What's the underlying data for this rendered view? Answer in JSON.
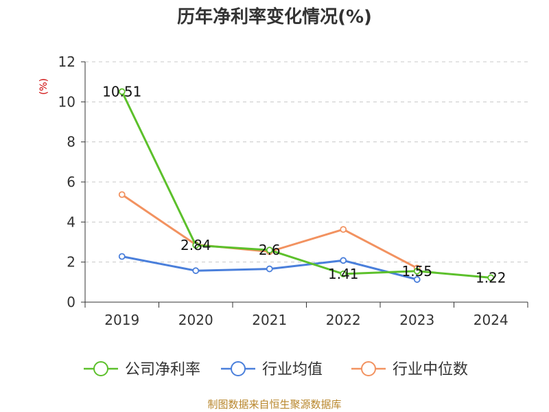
{
  "chart_data": {
    "type": "line",
    "title": "历年净利率变化情况(%)",
    "ylabel": "(%)",
    "xlabel": "",
    "categories": [
      "2019",
      "2020",
      "2021",
      "2022",
      "2023",
      "2024"
    ],
    "ylim": [
      0,
      12
    ],
    "yticks": [
      "0",
      "2",
      "4",
      "6",
      "8",
      "10",
      "12"
    ],
    "grid": "horizontal-dashed",
    "legend_position": "bottom",
    "series": [
      {
        "name": "公司净利率",
        "color": "#5cc02b",
        "values": [
          10.51,
          2.84,
          2.6,
          1.41,
          1.55,
          1.22
        ],
        "labels": [
          "10.51",
          "2.84",
          "2.6",
          "1.41",
          "1.55",
          "1.22"
        ]
      },
      {
        "name": "行业均值",
        "color": "#4a7fdb",
        "values": [
          2.28,
          1.57,
          1.66,
          2.08,
          1.13,
          null
        ],
        "labels": []
      },
      {
        "name": "行业中位数",
        "color": "#f29260",
        "values": [
          5.37,
          2.87,
          2.52,
          3.63,
          1.7,
          null
        ],
        "labels": []
      }
    ]
  },
  "source_text": "制图数据来自恒生聚源数据库"
}
